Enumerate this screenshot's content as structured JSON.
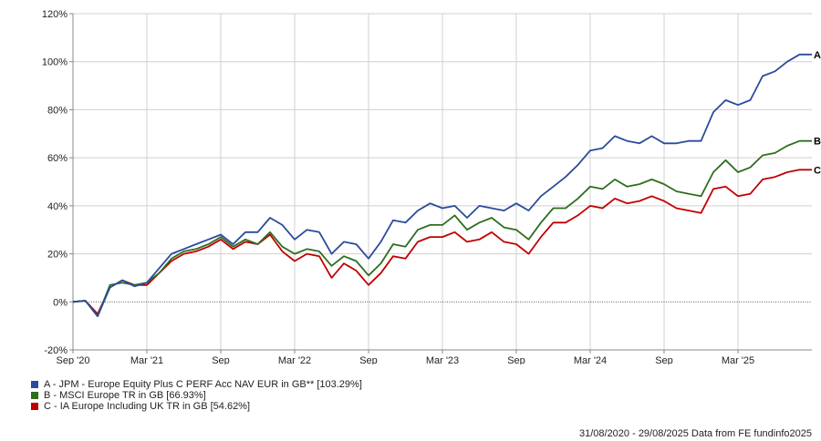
{
  "chart_data": {
    "type": "line",
    "grid": true,
    "ylim": [
      -20,
      120
    ],
    "y_ticks": [
      "-20%",
      "0%",
      "20%",
      "40%",
      "60%",
      "80%",
      "100%",
      "120%"
    ],
    "y_tick_values": [
      -20,
      0,
      20,
      40,
      60,
      80,
      100,
      120
    ],
    "x_ticks": [
      "Sep '20",
      "Mar '21",
      "Sep",
      "Mar '22",
      "Sep",
      "Mar '23",
      "Sep",
      "Mar '24",
      "Sep",
      "Mar '25"
    ],
    "x_tick_months": [
      0,
      6,
      12,
      18,
      24,
      30,
      36,
      42,
      48,
      54
    ],
    "x_range": [
      0,
      60
    ],
    "x": [
      0,
      1,
      2,
      3,
      4,
      5,
      6,
      7,
      8,
      9,
      10,
      11,
      12,
      13,
      14,
      15,
      16,
      17,
      18,
      19,
      20,
      21,
      22,
      23,
      24,
      25,
      26,
      27,
      28,
      29,
      30,
      31,
      32,
      33,
      34,
      35,
      36,
      37,
      38,
      39,
      40,
      41,
      42,
      43,
      44,
      45,
      46,
      47,
      48,
      49,
      50,
      51,
      52,
      53,
      54,
      55,
      56,
      57,
      58,
      59,
      60
    ],
    "series": [
      {
        "name": "A - JPM - Europe Equity Plus C  PERF Acc NAV EUR in GB** [103.29%]",
        "label": "A",
        "color": "#2a4b9c",
        "values": [
          0,
          0.5,
          -6,
          6,
          9,
          6.5,
          8,
          14,
          20,
          22,
          24,
          26,
          28,
          24,
          29,
          29,
          35,
          32,
          26,
          30,
          29,
          20,
          25,
          24,
          18,
          25,
          34,
          33,
          38,
          41,
          39,
          40,
          35,
          40,
          39,
          38,
          41,
          38,
          44,
          48,
          52,
          57,
          63,
          64,
          69,
          67,
          66,
          69,
          66,
          66,
          67,
          67,
          79,
          84,
          82,
          84,
          94,
          96,
          100,
          103,
          103
        ]
      },
      {
        "name": "B - MSCI Europe TR in GB [66.93%]",
        "label": "B",
        "color": "#2e6e1f",
        "values": [
          0,
          0.5,
          -6,
          7,
          8,
          7,
          8,
          12,
          18,
          21,
          22,
          24,
          27,
          23,
          26,
          24,
          29,
          23,
          20,
          22,
          21,
          15,
          19,
          17,
          11,
          16,
          24,
          23,
          30,
          32,
          32,
          36,
          30,
          33,
          35,
          31,
          30,
          26,
          33,
          39,
          39,
          43,
          48,
          47,
          51,
          48,
          49,
          51,
          49,
          46,
          45,
          44,
          54,
          59,
          54,
          56,
          61,
          62,
          65,
          67,
          67
        ]
      },
      {
        "name": "C - IA Europe Including UK TR in GB [54.62%]",
        "label": "C",
        "color": "#c00000",
        "values": [
          0,
          0.5,
          -5,
          6,
          9,
          7,
          7,
          12,
          17,
          20,
          21,
          23,
          26,
          22,
          25,
          24,
          28,
          21,
          17,
          20,
          19,
          10,
          16,
          13,
          7,
          12,
          19,
          18,
          25,
          27,
          27,
          29,
          25,
          26,
          29,
          25,
          24,
          20,
          27,
          33,
          33,
          36,
          40,
          39,
          43,
          41,
          42,
          44,
          42,
          39,
          38,
          37,
          47,
          48,
          44,
          45,
          51,
          52,
          54,
          55,
          55
        ]
      }
    ],
    "footer": "31/08/2020 - 29/08/2025 Data from FE fundinfo2025"
  }
}
